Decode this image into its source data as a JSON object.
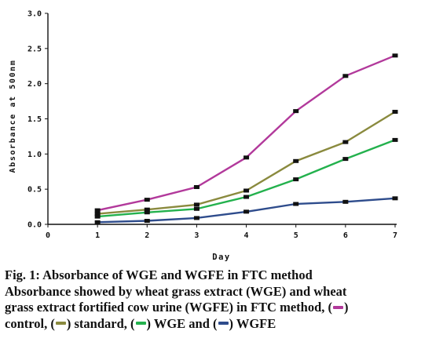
{
  "chart_data": {
    "type": "line",
    "xlabel": "Day",
    "ylabel": "Absorbance at 500nm",
    "x": [
      1,
      2,
      3,
      4,
      5,
      6,
      7
    ],
    "xlim": [
      0,
      7
    ],
    "ylim": [
      0,
      3.0
    ],
    "x_ticks": [
      "0",
      "1",
      "2",
      "3",
      "4",
      "5",
      "6",
      "7"
    ],
    "y_ticks": [
      "0.0",
      "0.5",
      "1.0",
      "1.5",
      "2.0",
      "2.5",
      "3.0"
    ],
    "grid": false,
    "legend": "none",
    "series": [
      {
        "key": "control",
        "color": "#b2399b",
        "values": [
          0.2,
          0.35,
          0.53,
          0.95,
          1.61,
          2.11,
          2.4
        ]
      },
      {
        "key": "standard",
        "color": "#8a8a3e",
        "values": [
          0.15,
          0.21,
          0.28,
          0.48,
          0.9,
          1.17,
          1.6
        ]
      },
      {
        "key": "WGE",
        "color": "#23b14d",
        "values": [
          0.11,
          0.17,
          0.22,
          0.39,
          0.64,
          0.93,
          1.2
        ]
      },
      {
        "key": "WGFE",
        "color": "#2e4c8c",
        "values": [
          0.03,
          0.05,
          0.09,
          0.18,
          0.29,
          0.32,
          0.37
        ]
      }
    ]
  },
  "caption": {
    "title": "Fig. 1: Absorbance of WGE and WGFE in FTC method",
    "line1": "Absorbance showed by wheat grass extract (WGE) and wheat",
    "line2_pre": "grass extract fortified cow urine (WGFE) in FTC method, (",
    "line2_post": ")",
    "line3_part1": "control, (",
    "line3_part2": ") standard, (",
    "line3_part3": ") WGE and (",
    "line3_part4": ") WGFE"
  }
}
